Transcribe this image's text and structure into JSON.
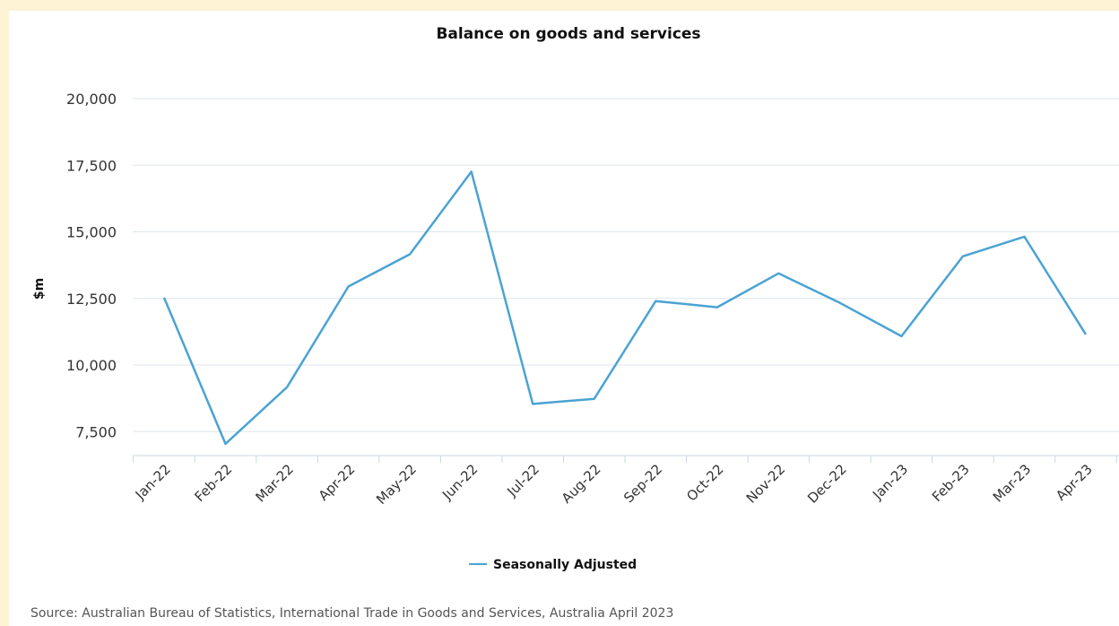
{
  "chart_data": {
    "type": "line",
    "title": "Balance on goods and services",
    "ylabel": "$m",
    "xlabel": "",
    "categories": [
      "Jan-22",
      "Feb-22",
      "Mar-22",
      "Apr-22",
      "May-22",
      "Jun-22",
      "Jul-22",
      "Aug-22",
      "Sep-22",
      "Oct-22",
      "Nov-22",
      "Dec-22",
      "Jan-23",
      "Feb-23",
      "Mar-23",
      "Apr-23"
    ],
    "series": [
      {
        "name": "Seasonally Adjusted",
        "color": "#4ba3d3",
        "values": [
          12530,
          7040,
          9170,
          12950,
          14160,
          17260,
          8540,
          8730,
          12400,
          12170,
          13440,
          12330,
          11080,
          14080,
          14820,
          11150
        ]
      }
    ],
    "yticks": [
      "20,000",
      "17,500",
      "15,000",
      "12,500",
      "10,000",
      "7,500"
    ],
    "ytick_values": [
      20000,
      17500,
      15000,
      12500,
      10000,
      7500
    ],
    "ylim": [
      6600,
      20000
    ],
    "grid": true,
    "legend_position": "bottom-center"
  },
  "source": "Source: Australian Bureau of Statistics, International Trade in Goods and Services, Australia April 2023"
}
